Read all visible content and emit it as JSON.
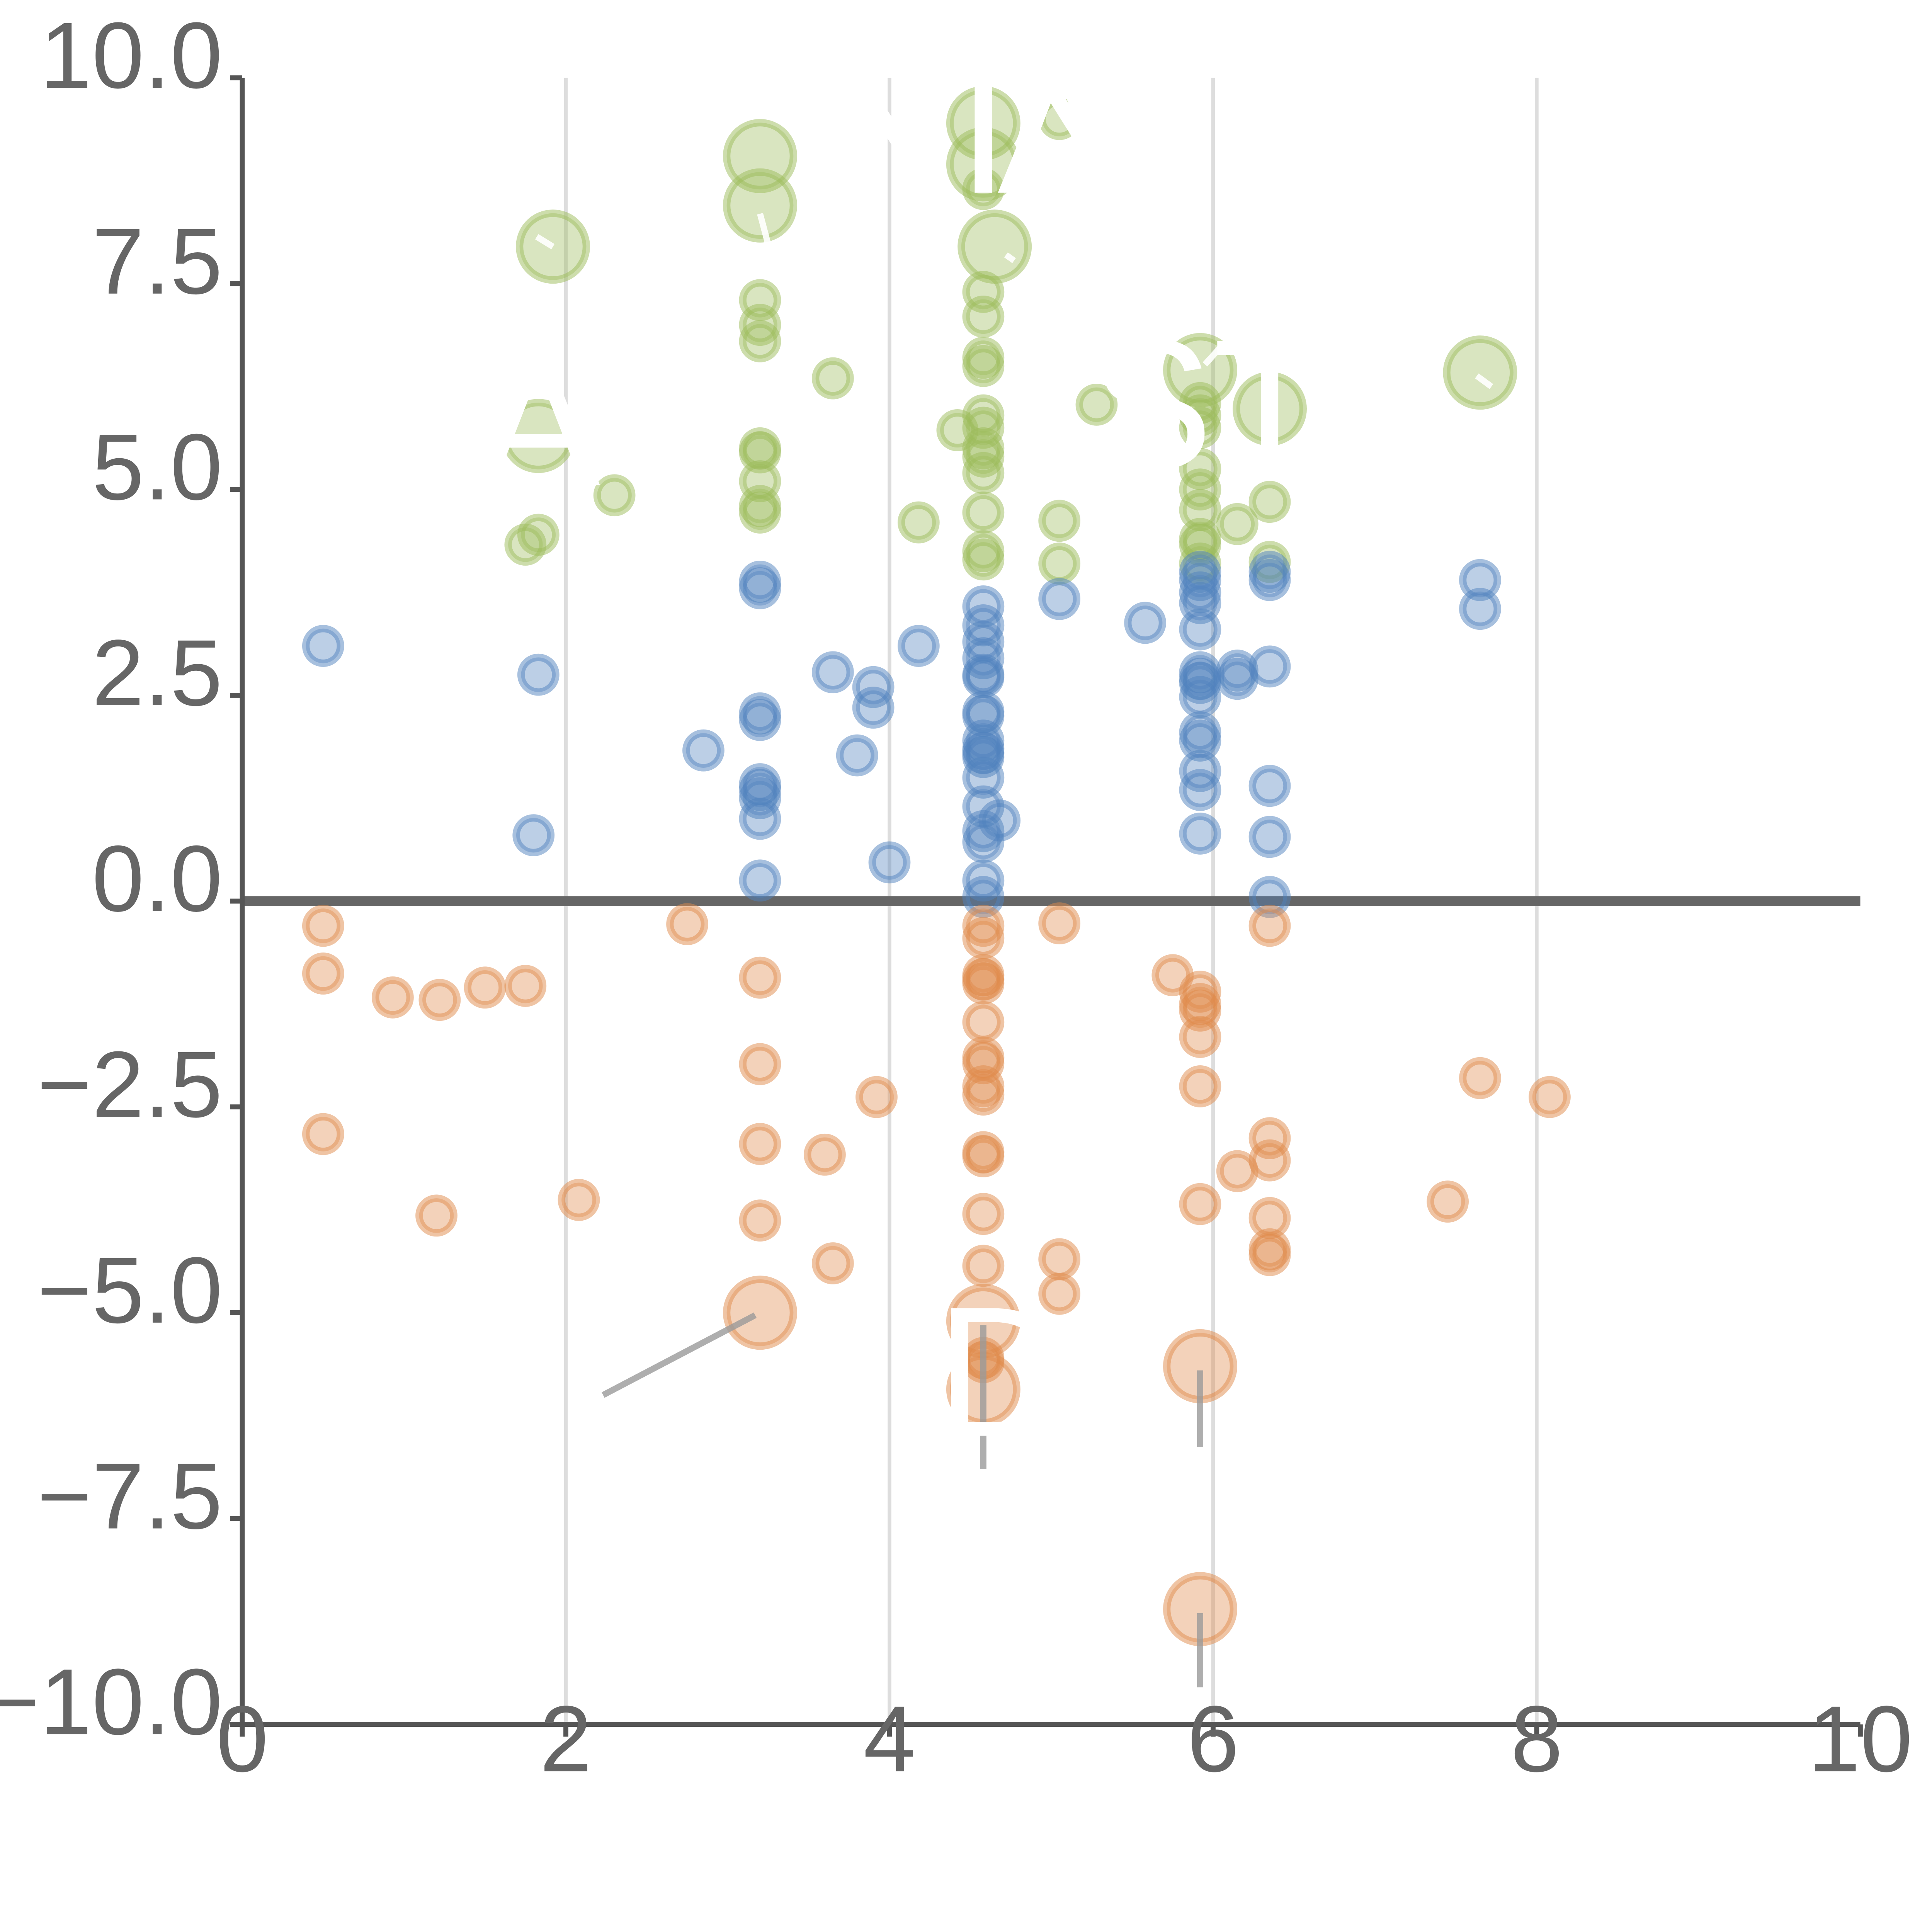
{
  "chart_data": {
    "type": "scatter",
    "title": "",
    "xlabel": "",
    "ylabel": "",
    "xlim": [
      0,
      10
    ],
    "ylim": [
      -10,
      10
    ],
    "x_ticks": [
      "0",
      "2",
      "4",
      "6",
      "8",
      "10"
    ],
    "y_ticks": [
      "10.0",
      "7.5",
      "5.0",
      "2.5",
      "0.0",
      "−2.5",
      "−5.0",
      "−7.5",
      "−10.0"
    ],
    "x_tick_values": [
      0,
      2,
      4,
      6,
      8,
      10
    ],
    "y_tick_values": [
      10,
      7.5,
      5,
      2.5,
      0,
      -2.5,
      -5,
      -7.5,
      -10
    ],
    "grid": "vertical",
    "reference_line_y": 0,
    "legend": "none",
    "colors": {
      "positive_strong": "#9bbb59",
      "positive": "#4f81bd",
      "negative": "#e08a4a"
    },
    "series": [
      {
        "name": "positive_strong",
        "color": "#9bbb59",
        "points": [
          [
            4.58,
            9.45,
            2
          ],
          [
            5.05,
            9.5,
            1
          ],
          [
            3.2,
            9.05,
            2
          ],
          [
            3.2,
            8.45,
            2
          ],
          [
            4.58,
            8.95,
            2
          ],
          [
            4.58,
            8.65,
            1
          ],
          [
            1.92,
            7.95,
            2
          ],
          [
            4.65,
            7.95,
            2
          ],
          [
            4.58,
            7.4,
            1
          ],
          [
            3.2,
            7.3,
            1
          ],
          [
            3.2,
            7.0,
            1
          ],
          [
            4.58,
            7.1,
            1
          ],
          [
            3.2,
            6.8,
            1
          ],
          [
            4.58,
            6.6,
            1
          ],
          [
            4.58,
            6.5,
            1
          ],
          [
            3.65,
            6.35,
            1
          ],
          [
            5.92,
            6.45,
            2
          ],
          [
            7.65,
            6.42,
            2
          ],
          [
            6.35,
            5.98,
            2
          ],
          [
            5.28,
            6.03,
            1
          ],
          [
            1.83,
            5.65,
            2
          ],
          [
            4.42,
            5.72,
            1
          ],
          [
            4.58,
            5.9,
            1
          ],
          [
            4.58,
            5.75,
            1
          ],
          [
            5.92,
            6.05,
            1
          ],
          [
            5.92,
            5.9,
            1
          ],
          [
            5.92,
            5.75,
            1
          ],
          [
            3.2,
            5.5,
            1
          ],
          [
            3.2,
            5.45,
            1
          ],
          [
            4.58,
            5.5,
            1
          ],
          [
            4.58,
            5.4,
            1
          ],
          [
            4.58,
            5.2,
            1
          ],
          [
            3.2,
            5.1,
            1
          ],
          [
            5.92,
            5.25,
            1
          ],
          [
            5.92,
            5.0,
            1
          ],
          [
            2.3,
            4.93,
            1
          ],
          [
            3.2,
            4.8,
            1
          ],
          [
            3.2,
            4.72,
            1
          ],
          [
            4.58,
            4.72,
            1
          ],
          [
            5.92,
            4.75,
            1
          ],
          [
            4.18,
            4.6,
            1
          ],
          [
            5.05,
            4.62,
            1
          ],
          [
            6.15,
            4.58,
            1
          ],
          [
            6.35,
            4.85,
            1
          ],
          [
            1.83,
            4.45,
            1
          ],
          [
            1.75,
            4.33,
            1
          ],
          [
            5.92,
            4.4,
            1
          ],
          [
            5.92,
            4.33,
            1
          ],
          [
            4.58,
            4.25,
            1
          ],
          [
            4.58,
            4.15,
            1
          ],
          [
            5.05,
            4.1,
            1
          ],
          [
            5.92,
            4.1,
            1
          ],
          [
            6.35,
            4.12,
            1
          ]
        ]
      },
      {
        "name": "positive",
        "color": "#4f81bd",
        "points": [
          [
            0.5,
            3.1,
            1
          ],
          [
            1.83,
            2.75,
            1
          ],
          [
            1.8,
            0.8,
            1
          ],
          [
            2.85,
            1.83,
            1
          ],
          [
            3.2,
            3.88,
            1
          ],
          [
            3.2,
            3.8,
            1
          ],
          [
            3.2,
            2.28,
            1
          ],
          [
            3.2,
            2.2,
            1
          ],
          [
            3.2,
            1.42,
            1
          ],
          [
            3.2,
            1.35,
            1
          ],
          [
            3.2,
            1.25,
            1
          ],
          [
            3.2,
            1.0,
            1
          ],
          [
            3.2,
            0.25,
            1
          ],
          [
            3.65,
            2.78,
            1
          ],
          [
            3.9,
            2.6,
            1
          ],
          [
            3.9,
            2.35,
            1
          ],
          [
            3.8,
            1.77,
            1
          ],
          [
            4.0,
            0.47,
            1
          ],
          [
            4.18,
            3.1,
            1
          ],
          [
            4.58,
            3.58,
            1
          ],
          [
            4.58,
            3.35,
            1
          ],
          [
            4.58,
            3.15,
            1
          ],
          [
            4.58,
            2.95,
            1
          ],
          [
            4.58,
            2.75,
            1
          ],
          [
            4.58,
            2.72,
            1
          ],
          [
            4.58,
            2.3,
            1
          ],
          [
            4.58,
            2.25,
            1
          ],
          [
            4.58,
            1.95,
            1
          ],
          [
            4.58,
            1.85,
            1
          ],
          [
            4.58,
            1.8,
            1
          ],
          [
            4.58,
            1.75,
            1
          ],
          [
            4.58,
            1.5,
            1
          ],
          [
            4.58,
            1.15,
            1
          ],
          [
            4.58,
            0.85,
            1
          ],
          [
            4.58,
            0.72,
            1
          ],
          [
            4.58,
            0.25,
            1
          ],
          [
            4.58,
            0.05,
            1
          ],
          [
            4.68,
            0.98,
            1
          ],
          [
            5.05,
            3.67,
            1
          ],
          [
            5.58,
            3.38,
            1
          ],
          [
            5.92,
            4.0,
            1
          ],
          [
            5.92,
            3.9,
            1
          ],
          [
            5.92,
            3.75,
            1
          ],
          [
            5.92,
            3.62,
            1
          ],
          [
            5.92,
            3.3,
            1
          ],
          [
            5.92,
            2.78,
            1
          ],
          [
            5.92,
            2.7,
            1
          ],
          [
            5.92,
            2.65,
            1
          ],
          [
            5.92,
            2.48,
            1
          ],
          [
            5.92,
            2.05,
            1
          ],
          [
            5.92,
            1.95,
            1
          ],
          [
            5.92,
            1.58,
            1
          ],
          [
            5.92,
            1.35,
            1
          ],
          [
            5.92,
            0.82,
            1
          ],
          [
            6.15,
            2.8,
            1
          ],
          [
            6.15,
            2.7,
            1
          ],
          [
            6.35,
            4.0,
            1
          ],
          [
            6.35,
            3.9,
            1
          ],
          [
            6.35,
            2.85,
            1
          ],
          [
            6.35,
            1.4,
            1
          ],
          [
            6.35,
            0.78,
            1
          ],
          [
            6.35,
            0.05,
            1
          ],
          [
            7.65,
            3.9,
            1
          ],
          [
            7.65,
            3.55,
            1
          ]
        ]
      },
      {
        "name": "negative",
        "color": "#e08a4a",
        "points": [
          [
            0.5,
            -0.3,
            1
          ],
          [
            0.5,
            -0.88,
            1
          ],
          [
            0.5,
            -2.83,
            1
          ],
          [
            0.93,
            -1.17,
            1
          ],
          [
            1.22,
            -1.2,
            1
          ],
          [
            1.5,
            -1.05,
            1
          ],
          [
            1.75,
            -1.03,
            1
          ],
          [
            1.2,
            -3.82,
            1
          ],
          [
            2.08,
            -3.63,
            1
          ],
          [
            2.75,
            -0.28,
            1
          ],
          [
            3.2,
            -0.93,
            1
          ],
          [
            3.2,
            -1.98,
            1
          ],
          [
            3.2,
            -2.95,
            1
          ],
          [
            3.2,
            -3.88,
            1
          ],
          [
            3.2,
            -5.0,
            2
          ],
          [
            3.6,
            -3.08,
            1
          ],
          [
            3.65,
            -4.4,
            1
          ],
          [
            3.92,
            -2.38,
            1
          ],
          [
            4.58,
            -0.3,
            1
          ],
          [
            4.58,
            -0.45,
            1
          ],
          [
            4.58,
            -0.9,
            1
          ],
          [
            4.58,
            -0.95,
            1
          ],
          [
            4.58,
            -1.0,
            1
          ],
          [
            4.58,
            -1.47,
            1
          ],
          [
            4.58,
            -1.9,
            1
          ],
          [
            4.58,
            -1.97,
            1
          ],
          [
            4.58,
            -2.25,
            1
          ],
          [
            4.58,
            -2.35,
            1
          ],
          [
            4.58,
            -3.05,
            1
          ],
          [
            4.58,
            -3.1,
            1
          ],
          [
            4.58,
            -3.8,
            1
          ],
          [
            4.58,
            -4.43,
            1
          ],
          [
            4.58,
            -5.55,
            1
          ],
          [
            4.58,
            -5.6,
            1
          ],
          [
            4.58,
            -5.1,
            2
          ],
          [
            4.58,
            -5.93,
            2
          ],
          [
            5.05,
            -0.27,
            1
          ],
          [
            5.05,
            -4.35,
            1
          ],
          [
            5.05,
            -4.77,
            1
          ],
          [
            5.75,
            -0.9,
            1
          ],
          [
            5.92,
            -1.1,
            1
          ],
          [
            5.92,
            -1.25,
            1
          ],
          [
            5.92,
            -1.33,
            1
          ],
          [
            5.92,
            -1.65,
            1
          ],
          [
            5.92,
            -2.25,
            1
          ],
          [
            5.92,
            -3.68,
            1
          ],
          [
            5.92,
            -5.65,
            2
          ],
          [
            5.92,
            -8.6,
            2
          ],
          [
            6.15,
            -3.28,
            1
          ],
          [
            6.35,
            -0.3,
            1
          ],
          [
            6.35,
            -2.88,
            1
          ],
          [
            6.35,
            -3.15,
            1
          ],
          [
            6.35,
            -3.85,
            1
          ],
          [
            6.35,
            -4.23,
            1
          ],
          [
            6.35,
            -4.3,
            1
          ],
          [
            7.45,
            -3.65,
            1
          ],
          [
            7.65,
            -2.15,
            1
          ],
          [
            8.08,
            -2.38,
            1
          ]
        ]
      }
    ],
    "annotations": [
      {
        "text": "A",
        "x": 1.83,
        "y": 5.65
      },
      {
        "text": "NIN",
        "x": 4.58,
        "y": 9.2
      },
      {
        "text": "A",
        "x": 5.05,
        "y": 9.2
      },
      {
        "text": "STE",
        "x": 6.35,
        "y": 5.85
      },
      {
        "text": "D",
        "x": 4.7,
        "y": -5.9
      }
    ],
    "leader_lines": [
      {
        "x1": 3.17,
        "y1": -5.03,
        "x2": 2.23,
        "y2": -6.0,
        "style": "grey"
      },
      {
        "x1": 4.58,
        "y1": -5.15,
        "x2": 4.58,
        "y2": -6.9,
        "style": "grey"
      },
      {
        "x1": 5.92,
        "y1": -5.7,
        "x2": 5.92,
        "y2": -6.63,
        "style": "grey"
      },
      {
        "x1": 5.92,
        "y1": -8.65,
        "x2": 5.92,
        "y2": -9.55,
        "style": "grey"
      },
      {
        "x1": 1.82,
        "y1": 8.07,
        "x2": 1.92,
        "y2": 7.95,
        "style": "white"
      },
      {
        "x1": 3.2,
        "y1": 8.35,
        "x2": 3.25,
        "y2": 7.98,
        "style": "white"
      },
      {
        "x1": 4.72,
        "y1": 7.85,
        "x2": 4.77,
        "y2": 7.78,
        "style": "white"
      },
      {
        "x1": 5.95,
        "y1": 6.52,
        "x2": 6.07,
        "y2": 6.78,
        "style": "white"
      },
      {
        "x1": 7.63,
        "y1": 6.38,
        "x2": 7.72,
        "y2": 6.25,
        "style": "white"
      }
    ]
  }
}
